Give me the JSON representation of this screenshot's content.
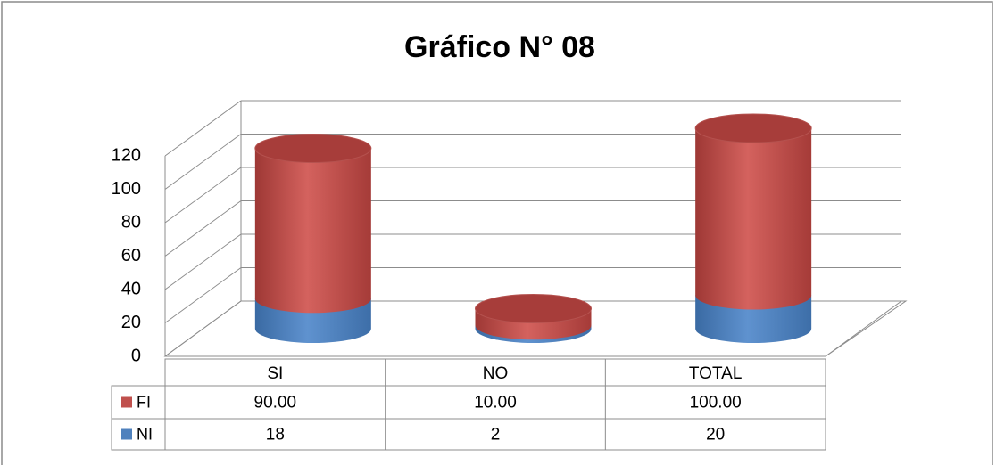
{
  "chart_data": {
    "type": "bar3d-cylinder-stacked",
    "title": "Gráfico N° 08",
    "categories": [
      "SI",
      "NO",
      "TOTAL"
    ],
    "series": [
      {
        "name": "FI",
        "color": "#c0504d",
        "values": [
          90,
          10,
          100
        ],
        "value_labels": [
          "90.00",
          "10.00",
          "100.00"
        ]
      },
      {
        "name": "NI",
        "color": "#4f81bd",
        "values": [
          18,
          2,
          20
        ]
      }
    ],
    "ylim": [
      0,
      120
    ],
    "yticks": [
      0,
      20,
      40,
      60,
      80,
      100,
      120
    ],
    "grid": true
  }
}
